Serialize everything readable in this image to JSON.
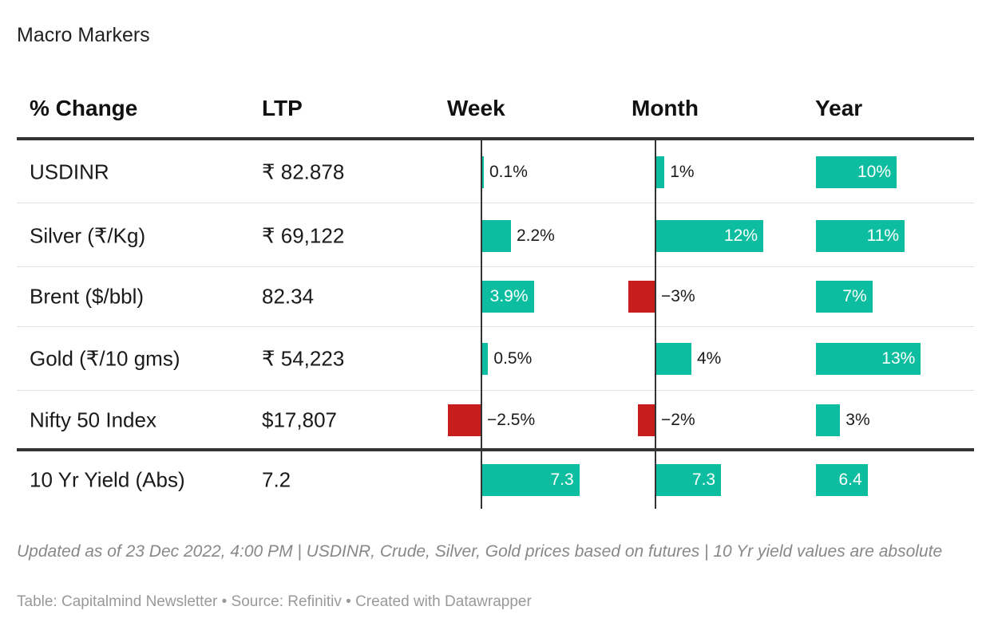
{
  "title": "Macro Markers",
  "headers": {
    "change": "% Change",
    "ltp": "LTP",
    "week": "Week",
    "month": "Month",
    "year": "Year"
  },
  "chart_data": {
    "type": "table",
    "columns": [
      "% Change",
      "LTP",
      "Week",
      "Month",
      "Year"
    ],
    "rows": [
      {
        "name": "USDINR",
        "ltp": "₹ 82.878",
        "week": 0.1,
        "week_label": "0.1%",
        "month": 1,
        "month_label": "1%",
        "year": 10,
        "year_label": "10%"
      },
      {
        "name": "Silver (₹/Kg)",
        "ltp": "₹ 69,122",
        "week": 2.2,
        "week_label": "2.2%",
        "month": 12,
        "month_label": "12%",
        "year": 11,
        "year_label": "11%"
      },
      {
        "name": "Brent ($/bbl)",
        "ltp": "82.34",
        "week": 3.9,
        "week_label": "3.9%",
        "month": -3,
        "month_label": "−3%",
        "year": 7,
        "year_label": "7%"
      },
      {
        "name": "Gold (₹/10 gms)",
        "ltp": "₹ 54,223",
        "week": 0.5,
        "week_label": "0.5%",
        "month": 4,
        "month_label": "4%",
        "year": 13,
        "year_label": "13%"
      },
      {
        "name": "Nifty 50 Index",
        "ltp": "$17,807",
        "week": -2.5,
        "week_label": "−2.5%",
        "month": -2,
        "month_label": "−2%",
        "year": 3,
        "year_label": "3%"
      },
      {
        "name": "10 Yr Yield (Abs)",
        "ltp": "7.2",
        "week": 7.3,
        "week_label": "7.3",
        "month": 7.3,
        "month_label": "7.3",
        "year": 6.4,
        "year_label": "6.4"
      }
    ],
    "colors": {
      "positive": "#0dbd9f",
      "negative": "#c71e1d"
    }
  },
  "notes": "Updated as of 23 Dec 2022, 4:00 PM | USDINR, Crude, Silver, Gold prices based on futures | 10 Yr yield values are absolute",
  "footer": "Table: Capitalmind Newsletter • Source: Refinitiv • Created with Datawrapper"
}
